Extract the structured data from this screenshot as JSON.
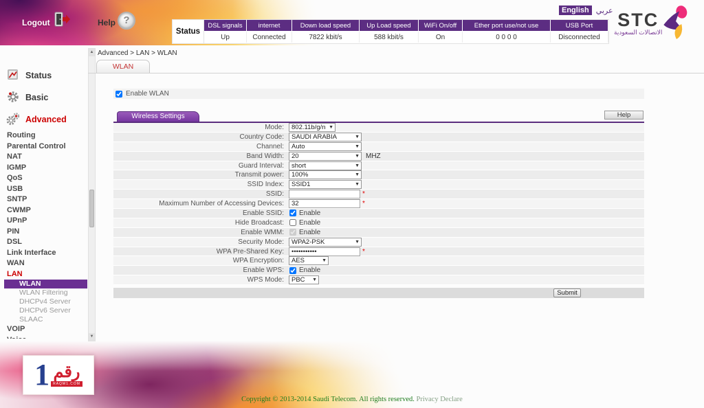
{
  "topbar": {
    "logout_label": "Logout",
    "help_label": "Help",
    "language": {
      "english": "English",
      "arabic": "عربي"
    },
    "logo": {
      "name": "STC",
      "arabic": "الاتصالات السعودية"
    },
    "status_table": {
      "row_header": "Status",
      "columns": [
        {
          "header": "DSL signals",
          "value": "Up"
        },
        {
          "header": "internet",
          "value": "Connected"
        },
        {
          "header": "Down load speed",
          "value": "7822 kbit/s"
        },
        {
          "header": "Up Load speed",
          "value": "588 kbit/s"
        },
        {
          "header": "WiFi On/off",
          "value": "On"
        },
        {
          "header": "Ether port use/not use",
          "value": "0 0 0 0"
        },
        {
          "header": "USB Port",
          "value": "Disconnected"
        }
      ]
    }
  },
  "sidebar": {
    "items": [
      {
        "label": "Status",
        "type": "section",
        "icon": "status-icon"
      },
      {
        "label": "Basic",
        "type": "section",
        "icon": "basic-icon"
      },
      {
        "label": "Advanced",
        "type": "section",
        "icon": "advanced-icon",
        "red": true
      },
      {
        "label": "Routing",
        "type": "link"
      },
      {
        "label": "Parental Control",
        "type": "link"
      },
      {
        "label": "NAT",
        "type": "link"
      },
      {
        "label": "IGMP",
        "type": "link"
      },
      {
        "label": "QoS",
        "type": "link"
      },
      {
        "label": "USB",
        "type": "link"
      },
      {
        "label": "SNTP",
        "type": "link"
      },
      {
        "label": "CWMP",
        "type": "link"
      },
      {
        "label": "UPnP",
        "type": "link"
      },
      {
        "label": "PIN",
        "type": "link"
      },
      {
        "label": "DSL",
        "type": "link"
      },
      {
        "label": "Link Interface",
        "type": "link"
      },
      {
        "label": "WAN",
        "type": "link"
      },
      {
        "label": "LAN",
        "type": "link",
        "red": true
      },
      {
        "label": "WLAN",
        "type": "sub",
        "selected": true
      },
      {
        "label": "WLAN Filtering",
        "type": "sub"
      },
      {
        "label": "DHCPv4 Server",
        "type": "sub"
      },
      {
        "label": "DHCPv6 Server",
        "type": "sub"
      },
      {
        "label": "SLAAC",
        "type": "sub"
      },
      {
        "label": "VOIP",
        "type": "link"
      },
      {
        "label": "Voice",
        "type": "link",
        "clipped": true
      }
    ]
  },
  "content": {
    "breadcrumb": "Advanced > LAN > WLAN",
    "tab": "WLAN",
    "enable_wlan": {
      "label": "Enable WLAN",
      "checked": true
    },
    "panel": {
      "title": "Wireless Settings",
      "help_label": "Help",
      "submit_label": "Submit",
      "rows": [
        {
          "label": "Mode:",
          "type": "select",
          "value": "802.11b/g/n",
          "size": "m"
        },
        {
          "label": "Country Code:",
          "type": "select",
          "value": "SAUDI ARABIA",
          "size": "l"
        },
        {
          "label": "Channel:",
          "type": "select",
          "value": "Auto",
          "size": "l"
        },
        {
          "label": "Band Width:",
          "type": "select",
          "value": "20",
          "size": "l",
          "suffix": "MHZ"
        },
        {
          "label": "Guard Interval:",
          "type": "select",
          "value": "short",
          "size": "l"
        },
        {
          "label": "Transmit power:",
          "type": "select",
          "value": "100%",
          "size": "l"
        },
        {
          "label": "SSID Index:",
          "type": "select",
          "value": "SSID1",
          "size": "l"
        },
        {
          "label": "SSID:",
          "type": "text",
          "value": "",
          "required": true
        },
        {
          "label": "Maximum Number of Accessing Devices:",
          "type": "text",
          "value": "32",
          "required": true
        },
        {
          "label": "Enable SSID:",
          "type": "checkbox",
          "checked": true,
          "cb_label": "Enable"
        },
        {
          "label": "Hide Broadcast:",
          "type": "checkbox",
          "checked": false,
          "cb_label": "Enable"
        },
        {
          "label": "Enable WMM:",
          "type": "checkbox",
          "checked": true,
          "disabled": true,
          "cb_label": "Enable"
        },
        {
          "label": "Security Mode:",
          "type": "select",
          "value": "WPA2-PSK",
          "size": "l"
        },
        {
          "label": "WPA Pre-Shared Key:",
          "type": "text",
          "value": "•••••••••••",
          "required": true
        },
        {
          "label": "WPA Encryption:",
          "type": "select",
          "value": "AES",
          "size": "s"
        },
        {
          "label": "Enable WPS:",
          "type": "checkbox",
          "checked": true,
          "cb_label": "Enable"
        },
        {
          "label": "WPS Mode:",
          "type": "select",
          "value": "PBC",
          "size": "xs"
        }
      ]
    }
  },
  "scrollbar": {
    "up_arrow": "▲",
    "down_arrow": "▼",
    "select_arrow": "▼"
  },
  "watermark": {
    "number": "1",
    "arabic": "رقم",
    "caption": "RAQM1.COM"
  },
  "footer": {
    "copyright": "Copyright © 2013-2014 Saudi Telecom. All rights reserved.",
    "privacy": "Privacy Declare"
  }
}
